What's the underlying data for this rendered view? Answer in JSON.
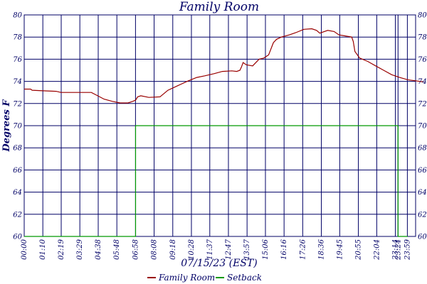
{
  "chart_data": {
    "type": "line",
    "title": "Family Room",
    "xlabel": "07/15/23 (EST)",
    "ylabel": "Degrees F",
    "ylim": [
      60,
      80
    ],
    "yticks": [
      60,
      62,
      64,
      66,
      68,
      70,
      72,
      74,
      76,
      78,
      80
    ],
    "xlim_hours": [
      0,
      24
    ],
    "xticks": [
      {
        "label": "00:00",
        "t": 0
      },
      {
        "label": "01:10",
        "t": 1.1667
      },
      {
        "label": "02:19",
        "t": 2.3167
      },
      {
        "label": "03:29",
        "t": 3.4833
      },
      {
        "label": "04:38",
        "t": 4.6333
      },
      {
        "label": "05:48",
        "t": 5.8
      },
      {
        "label": "06:58",
        "t": 6.9667
      },
      {
        "label": "08:08",
        "t": 8.1333
      },
      {
        "label": "09:18",
        "t": 9.3
      },
      {
        "label": "10:28",
        "t": 10.4667
      },
      {
        "label": "11:37",
        "t": 11.6167
      },
      {
        "label": "12:47",
        "t": 12.7833
      },
      {
        "label": "13:57",
        "t": 13.95
      },
      {
        "label": "15:06",
        "t": 15.1
      },
      {
        "label": "16:16",
        "t": 16.2667
      },
      {
        "label": "17:26",
        "t": 17.4333
      },
      {
        "label": "18:36",
        "t": 18.6
      },
      {
        "label": "19:45",
        "t": 19.75
      },
      {
        "label": "20:55",
        "t": 20.9167
      },
      {
        "label": "22:04",
        "t": 22.0667
      },
      {
        "label": "23:14",
        "t": 23.2333
      },
      {
        "label": "23:24",
        "t": 23.4
      },
      {
        "label": "23:59",
        "t": 23.9833
      }
    ],
    "grid": true,
    "legend_position": "bottom-center",
    "series": [
      {
        "name": "Family Room",
        "color": "#990000",
        "points": [
          [
            0,
            73.3
          ],
          [
            0.4,
            73.3
          ],
          [
            0.5,
            73.2
          ],
          [
            1.2,
            73.15
          ],
          [
            2.0,
            73.1
          ],
          [
            2.3,
            73.0
          ],
          [
            3.0,
            73.0
          ],
          [
            4.2,
            73.0
          ],
          [
            4.6,
            72.7
          ],
          [
            5.0,
            72.4
          ],
          [
            5.5,
            72.2
          ],
          [
            6.0,
            72.05
          ],
          [
            6.5,
            72.05
          ],
          [
            6.8,
            72.2
          ],
          [
            6.97,
            72.3
          ],
          [
            7.1,
            72.6
          ],
          [
            7.3,
            72.7
          ],
          [
            7.8,
            72.55
          ],
          [
            8.5,
            72.6
          ],
          [
            9.0,
            73.2
          ],
          [
            9.6,
            73.6
          ],
          [
            10.2,
            74.0
          ],
          [
            10.8,
            74.35
          ],
          [
            11.3,
            74.5
          ],
          [
            11.9,
            74.7
          ],
          [
            12.4,
            74.9
          ],
          [
            13.0,
            74.95
          ],
          [
            13.3,
            74.9
          ],
          [
            13.5,
            75.0
          ],
          [
            13.6,
            75.3
          ],
          [
            13.7,
            75.7
          ],
          [
            13.9,
            75.5
          ],
          [
            14.3,
            75.4
          ],
          [
            14.7,
            76.0
          ],
          [
            15.0,
            76.1
          ],
          [
            15.3,
            76.4
          ],
          [
            15.6,
            77.5
          ],
          [
            15.8,
            77.8
          ],
          [
            16.1,
            78.0
          ],
          [
            16.6,
            78.2
          ],
          [
            17.0,
            78.4
          ],
          [
            17.5,
            78.7
          ],
          [
            18.0,
            78.75
          ],
          [
            18.3,
            78.6
          ],
          [
            18.5,
            78.35
          ],
          [
            19.0,
            78.6
          ],
          [
            19.4,
            78.5
          ],
          [
            19.7,
            78.2
          ],
          [
            20.1,
            78.1
          ],
          [
            20.5,
            78.0
          ],
          [
            20.6,
            77.6
          ],
          [
            20.7,
            76.7
          ],
          [
            21.0,
            76.1
          ],
          [
            21.5,
            75.8
          ],
          [
            22.0,
            75.4
          ],
          [
            22.5,
            75.0
          ],
          [
            23.0,
            74.6
          ],
          [
            23.5,
            74.35
          ],
          [
            24.0,
            74.15
          ],
          [
            24.5,
            74.05
          ],
          [
            25.0,
            73.95
          ]
        ]
      },
      {
        "name": "Setback",
        "color": "#009900",
        "points": [
          [
            0,
            60
          ],
          [
            6.97,
            60
          ],
          [
            6.97,
            70
          ],
          [
            23.4,
            70
          ],
          [
            23.4,
            60
          ],
          [
            24.0,
            60
          ]
        ]
      }
    ]
  }
}
